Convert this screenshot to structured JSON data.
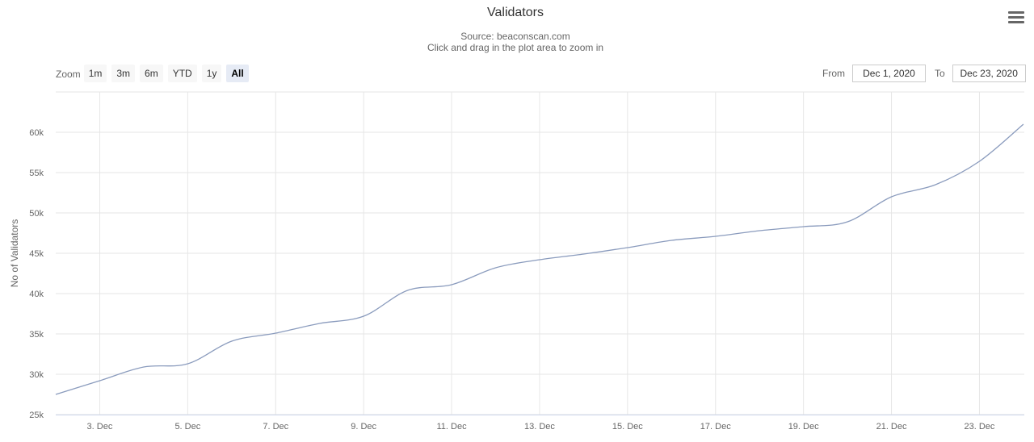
{
  "toolbar": {
    "menu_icon": "hamburger-menu-icon",
    "zoom_label": "Zoom",
    "zoom_buttons": [
      "1m",
      "3m",
      "6m",
      "YTD",
      "1y",
      "All"
    ],
    "zoom_active": "All",
    "from_label": "From",
    "from_value": "Dec 1, 2020",
    "to_label": "To",
    "to_value": "Dec 23, 2020"
  },
  "chart_data": {
    "type": "line",
    "title": "Validators",
    "subtitle_lines": [
      "Source: beaconscan.com",
      "Click and drag in the plot area to zoom in"
    ],
    "xlabel": "",
    "ylabel": "No of Validators",
    "x_ticks": [
      "3. Dec",
      "5. Dec",
      "7. Dec",
      "9. Dec",
      "11. Dec",
      "13. Dec",
      "15. Dec",
      "17. Dec",
      "19. Dec",
      "21. Dec",
      "23. Dec"
    ],
    "y_ticks": [
      "25k",
      "30k",
      "35k",
      "40k",
      "45k",
      "50k",
      "55k",
      "60k"
    ],
    "ylim": [
      25000,
      65000
    ],
    "grid": true,
    "line_color": "#8a9bbd",
    "series": [
      {
        "name": "",
        "x": [
          "2020-12-02",
          "2020-12-03",
          "2020-12-04",
          "2020-12-05",
          "2020-12-06",
          "2020-12-07",
          "2020-12-08",
          "2020-12-09",
          "2020-12-10",
          "2020-12-11",
          "2020-12-12",
          "2020-12-13",
          "2020-12-14",
          "2020-12-15",
          "2020-12-16",
          "2020-12-17",
          "2020-12-18",
          "2020-12-19",
          "2020-12-20",
          "2020-12-21",
          "2020-12-22",
          "2020-12-23",
          "2020-12-24"
        ],
        "values": [
          27500,
          29200,
          30900,
          31300,
          34100,
          35100,
          36300,
          37200,
          40400,
          41100,
          43200,
          44200,
          44900,
          45700,
          46600,
          47100,
          47800,
          48300,
          48900,
          52000,
          53500,
          56400,
          61000
        ]
      }
    ]
  }
}
